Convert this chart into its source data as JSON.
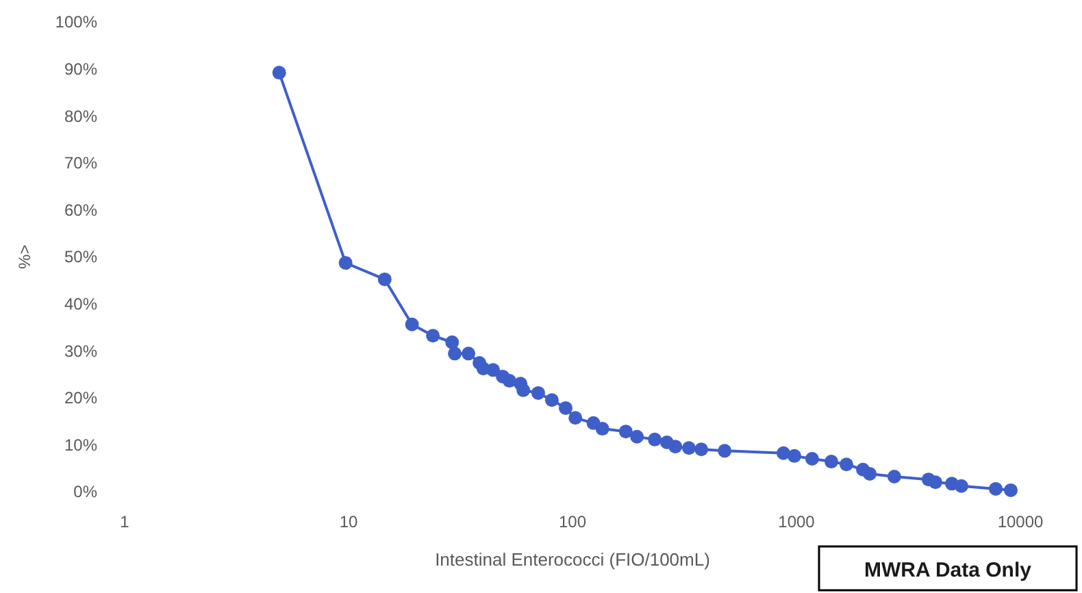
{
  "chart_data": {
    "type": "line",
    "xlabel": "Intestinal Enterococci (FIO/100mL)",
    "ylabel": "%>",
    "annotations": [
      "MWRA Data Only"
    ],
    "log": "x",
    "grid": false,
    "marker": "circle",
    "line_style": "solid",
    "xlim": [
      1,
      10000
    ],
    "xticks": [
      1,
      10,
      100,
      1000,
      10000
    ],
    "ylim": [
      0,
      100
    ],
    "yticks": [
      {
        "value": 0,
        "label": "0%"
      },
      {
        "value": 10,
        "label": "10%"
      },
      {
        "value": 20,
        "label": "20%"
      },
      {
        "value": 30,
        "label": "30%"
      },
      {
        "value": 40,
        "label": "40%"
      },
      {
        "value": 50,
        "label": "50%"
      },
      {
        "value": 60,
        "label": "60%"
      },
      {
        "value": 70,
        "label": "70%"
      },
      {
        "value": 80,
        "label": "80%"
      },
      {
        "value": 90,
        "label": "90%"
      },
      {
        "value": 100,
        "label": "100%"
      }
    ],
    "series": [
      {
        "color": "#3f5fc8",
        "x": [
          4.9,
          9.7,
          14.5,
          19.2,
          23.8,
          29,
          29.8,
          34.3,
          38.4,
          40,
          44.2,
          48.8,
          52.3,
          58.6,
          60.3,
          70.3,
          80.9,
          93.2,
          103,
          124,
          136,
          173,
          194,
          233,
          264,
          288,
          331,
          376,
          478,
          875,
          979,
          1175,
          1432,
          1672,
          1981,
          2125,
          2735,
          3890,
          4176,
          4944,
          5454,
          7762,
          9060
        ],
        "values": [
          89.2,
          48.7,
          45.2,
          35.6,
          33.2,
          31.8,
          29.4,
          29.4,
          27.4,
          26.2,
          25.9,
          24.5,
          23.6,
          23,
          21.6,
          21,
          19.5,
          17.8,
          15.7,
          14.6,
          13.4,
          12.8,
          11.7,
          11.1,
          10.5,
          9.6,
          9.3,
          9,
          8.7,
          8.2,
          7.6,
          7,
          6.4,
          5.8,
          4.7,
          3.8,
          3.2,
          2.6,
          2,
          1.7,
          1.2,
          0.6,
          0.3
        ]
      }
    ]
  }
}
